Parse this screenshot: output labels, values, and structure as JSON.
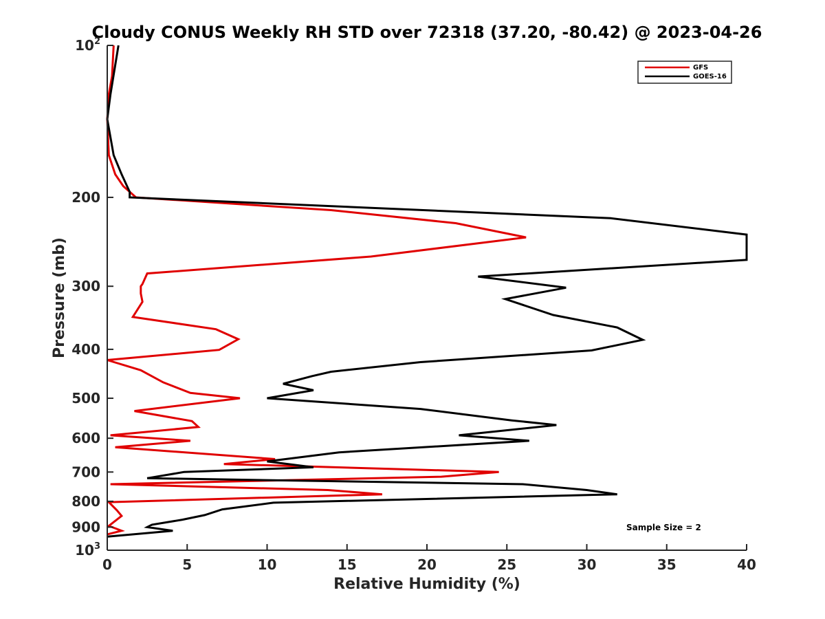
{
  "chart_data": {
    "type": "line",
    "title": "Cloudy CONUS Weekly RH STD over 72318 (37.20, -80.42) @ 2023-04-26",
    "xlabel": "Relative Humidity (%)",
    "ylabel": "Pressure (mb)",
    "xlim": [
      0,
      40
    ],
    "ylim": [
      100,
      1000
    ],
    "yscale": "log",
    "y_reversed": true,
    "x_ticks": [
      0,
      5,
      10,
      15,
      20,
      25,
      30,
      35,
      40
    ],
    "x_tick_labels": [
      "0",
      "5",
      "10",
      "15",
      "20",
      "25",
      "30",
      "35",
      "40"
    ],
    "y_ticks": [
      100,
      200,
      300,
      400,
      500,
      600,
      700,
      800,
      900,
      1000
    ],
    "y_tick_labels": [
      "",
      "200",
      "300",
      "400",
      "500",
      "600",
      "700",
      "800",
      "900",
      ""
    ],
    "y_tick_power_labels": [
      {
        "value": 100,
        "base": "10",
        "exp": "2"
      },
      {
        "value": 1000,
        "base": "10",
        "exp": "3"
      }
    ],
    "grid": false,
    "legend_position": "top-right",
    "series": [
      {
        "name": "GFS",
        "color": "#e00000",
        "points": [
          [
            0.4,
            100
          ],
          [
            0.3,
            115
          ],
          [
            0.1,
            125
          ],
          [
            0,
            140
          ],
          [
            0.1,
            165
          ],
          [
            0.5,
            180
          ],
          [
            1.0,
            190
          ],
          [
            1.8,
            200
          ],
          [
            14,
            212
          ],
          [
            21.8,
            225
          ],
          [
            26.2,
            240
          ],
          [
            16.5,
            262
          ],
          [
            2.5,
            283
          ],
          [
            2.2,
            297
          ],
          [
            2.1,
            300
          ],
          [
            2.1,
            310
          ],
          [
            2.2,
            322
          ],
          [
            1.6,
            345
          ],
          [
            6.8,
            365
          ],
          [
            8.2,
            382
          ],
          [
            7.0,
            401
          ],
          [
            0,
            420
          ],
          [
            2.1,
            440
          ],
          [
            3.5,
            465
          ],
          [
            5.2,
            488
          ],
          [
            8.3,
            500
          ],
          [
            1.7,
            530
          ],
          [
            5.3,
            555
          ],
          [
            5.7,
            570
          ],
          [
            0.2,
            592
          ],
          [
            5.2,
            607
          ],
          [
            0.5,
            625
          ],
          [
            10.5,
            660
          ],
          [
            7.3,
            675
          ],
          [
            24.5,
            700
          ],
          [
            20.9,
            715
          ],
          [
            0.2,
            740
          ],
          [
            13.8,
            760
          ],
          [
            17.2,
            775
          ],
          [
            0.1,
            803
          ],
          [
            0.6,
            833
          ],
          [
            0.9,
            855
          ],
          [
            0.6,
            870
          ],
          [
            0.1,
            895
          ],
          [
            0.9,
            915
          ],
          [
            0,
            930
          ]
        ]
      },
      {
        "name": "GOES-16",
        "color": "#000000",
        "points": [
          [
            0.7,
            100
          ],
          [
            0.2,
            125
          ],
          [
            0,
            140
          ],
          [
            0.4,
            165
          ],
          [
            0.9,
            180
          ],
          [
            1.4,
            195
          ],
          [
            1.4,
            200
          ],
          [
            31.5,
            220
          ],
          [
            40,
            237
          ],
          [
            40,
            266
          ],
          [
            23.2,
            287
          ],
          [
            28.7,
            302
          ],
          [
            24.9,
            318
          ],
          [
            27.9,
            342
          ],
          [
            31.9,
            362
          ],
          [
            33.5,
            383
          ],
          [
            30.3,
            402
          ],
          [
            19.6,
            424
          ],
          [
            14.0,
            443
          ],
          [
            12.8,
            452
          ],
          [
            11.0,
            468
          ],
          [
            12.9,
            482
          ],
          [
            10.0,
            500
          ],
          [
            19.6,
            525
          ],
          [
            25.3,
            553
          ],
          [
            28.1,
            565
          ],
          [
            22.0,
            592
          ],
          [
            26.4,
            607
          ],
          [
            14.5,
            640
          ],
          [
            10.0,
            667
          ],
          [
            12.9,
            685
          ],
          [
            4.8,
            700
          ],
          [
            2.5,
            720
          ],
          [
            26.0,
            740
          ],
          [
            30.0,
            760
          ],
          [
            31.9,
            775
          ],
          [
            10.4,
            805
          ],
          [
            7.2,
            830
          ],
          [
            6.1,
            852
          ],
          [
            4.7,
            870
          ],
          [
            2.8,
            890
          ],
          [
            2.5,
            900
          ],
          [
            4.1,
            915
          ],
          [
            0,
            940
          ]
        ]
      }
    ],
    "annotations": [
      "Sample Size = 2"
    ]
  }
}
